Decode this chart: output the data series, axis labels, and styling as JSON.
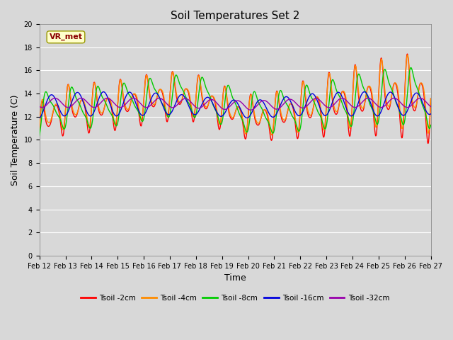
{
  "title": "Soil Temperatures Set 2",
  "xlabel": "Time",
  "ylabel": "Soil Temperature (C)",
  "ylim": [
    0,
    20
  ],
  "yticks": [
    0,
    2,
    4,
    6,
    8,
    10,
    12,
    14,
    16,
    18,
    20
  ],
  "plot_bg_color": "#d8d8d8",
  "grid_color": "#ffffff",
  "annotation_text": "VR_met",
  "annotation_color": "#8b0000",
  "annotation_bg": "#ffffcc",
  "annotation_edge": "#999900",
  "series_colors": [
    "#ff0000",
    "#ff8c00",
    "#00cc00",
    "#0000dd",
    "#9900aa"
  ],
  "series_labels": [
    "Tsoil -2cm",
    "Tsoil -4cm",
    "Tsoil -8cm",
    "Tsoil -16cm",
    "Tsoil -32cm"
  ],
  "x_tick_labels": [
    "Feb 12",
    "Feb 13",
    "Feb 14",
    "Feb 15",
    "Feb 16",
    "Feb 17",
    "Feb 18",
    "Feb 19",
    "Feb 20",
    "Feb 21",
    "Feb 22",
    "Feb 23",
    "Feb 24",
    "Feb 25",
    "Feb 26",
    "Feb 27"
  ],
  "tick_fontsize": 7,
  "axis_label_fontsize": 9,
  "title_fontsize": 11,
  "line_width": 1.0
}
